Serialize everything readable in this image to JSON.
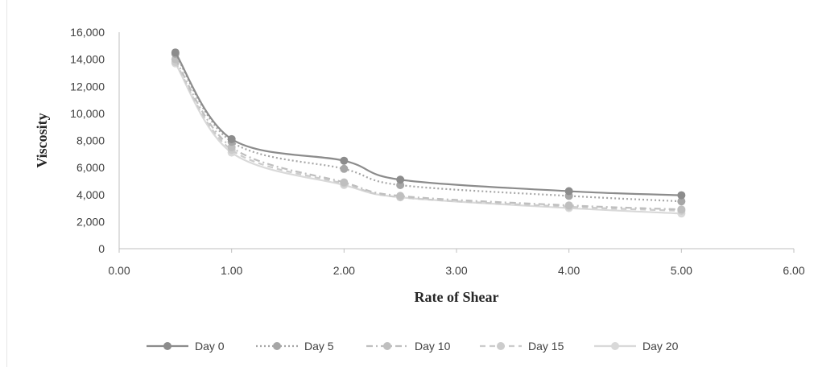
{
  "chart_data": {
    "type": "line",
    "xlabel": "Rate of Shear",
    "ylabel": "Viscosity",
    "xlim": [
      0,
      6
    ],
    "ylim": [
      0,
      16000
    ],
    "x_ticks": [
      "0.00",
      "1.00",
      "2.00",
      "3.00",
      "4.00",
      "5.00",
      "6.00"
    ],
    "y_ticks": [
      "0",
      "2,000",
      "4,000",
      "6,000",
      "8,000",
      "10,000",
      "12,000",
      "14,000",
      "16,000"
    ],
    "x": [
      0.5,
      1.0,
      2.0,
      2.5,
      4.0,
      5.0
    ],
    "series": [
      {
        "name": "Day 0",
        "values": [
          14500,
          8100,
          6500,
          5100,
          4250,
          3950
        ],
        "color": "#8c8c8c",
        "dash": "solid"
      },
      {
        "name": "Day 5",
        "values": [
          14400,
          7900,
          5900,
          4700,
          3900,
          3500
        ],
        "color": "#a6a6a6",
        "dash": "dotted"
      },
      {
        "name": "Day 10",
        "values": [
          14000,
          7500,
          4900,
          3900,
          3200,
          2900
        ],
        "color": "#bfbfbf",
        "dash": "dashdot"
      },
      {
        "name": "Day 15",
        "values": [
          13800,
          7300,
          4800,
          3800,
          3100,
          2800
        ],
        "color": "#cccccc",
        "dash": "dashed"
      },
      {
        "name": "Day 20",
        "values": [
          13700,
          7100,
          4700,
          3800,
          3000,
          2600
        ],
        "color": "#d9d9d9",
        "dash": "solid"
      }
    ],
    "grid": false,
    "legend_position": "bottom"
  }
}
